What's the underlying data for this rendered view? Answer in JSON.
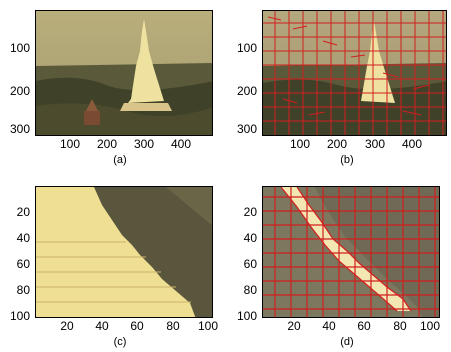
{
  "figure": {
    "panels": [
      {
        "id": "a",
        "caption": "(a)",
        "y_ticks": [
          "100",
          "200",
          "300"
        ],
        "x_ticks": [
          "100",
          "200",
          "300",
          "400"
        ],
        "content": "original temple image"
      },
      {
        "id": "b",
        "caption": "(b)",
        "y_ticks": [
          "100",
          "200",
          "300"
        ],
        "x_ticks": [
          "100",
          "200",
          "300",
          "400"
        ],
        "content": "superpixel segmentation overlay"
      },
      {
        "id": "c",
        "caption": "(c)",
        "y_ticks": [
          "20",
          "40",
          "60",
          "80",
          "100"
        ],
        "x_ticks": [
          "20",
          "40",
          "60",
          "80",
          "100"
        ],
        "content": "zoomed crop"
      },
      {
        "id": "d",
        "caption": "(d)",
        "y_ticks": [
          "20",
          "40",
          "60",
          "80",
          "100"
        ],
        "x_ticks": [
          "20",
          "40",
          "60",
          "80",
          "100"
        ],
        "content": "zoomed crop with segment boundaries"
      }
    ],
    "colors": {
      "sky": "#b7ad7a",
      "ground_dark": "#4a4a2e",
      "temple": "#f1e6a6",
      "boundary": "#d21f1f"
    }
  }
}
